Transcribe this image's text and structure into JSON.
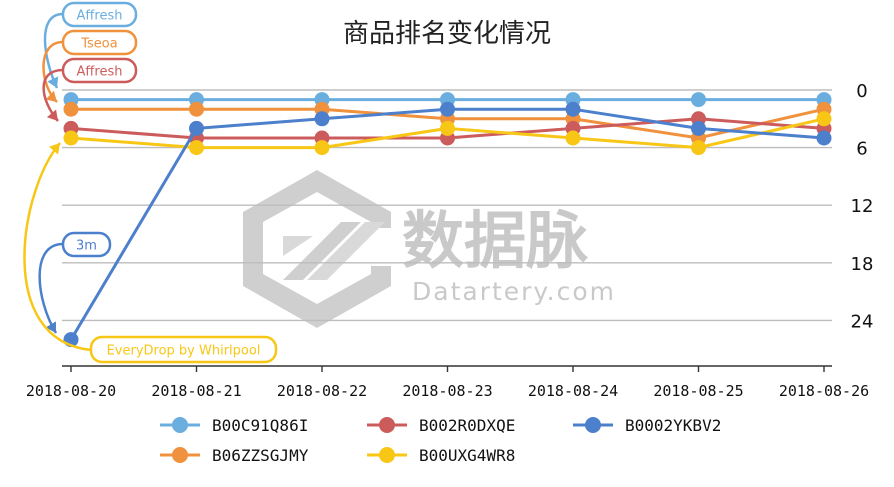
{
  "chart_data": {
    "type": "line",
    "title": "商品排名变化情况",
    "xlabel": "",
    "ylabel": "",
    "categories": [
      "2018-08-20",
      "2018-08-21",
      "2018-08-22",
      "2018-08-23",
      "2018-08-24",
      "2018-08-25",
      "2018-08-26"
    ],
    "y_ticks": [
      "0",
      "6",
      "12",
      "18",
      "24"
    ],
    "ylim": [
      0,
      28
    ],
    "y_inverted": true,
    "y_axis_side": "right",
    "grid": true,
    "legend_position": "bottom",
    "series": [
      {
        "name": "B00C91Q86I",
        "color": "#6aaee0",
        "values": [
          1,
          1,
          1,
          1,
          1,
          1,
          1
        ]
      },
      {
        "name": "B06ZZSGJMY",
        "color": "#f0913d",
        "values": [
          2,
          2,
          2,
          3,
          3,
          5,
          2
        ]
      },
      {
        "name": "B002R0DXQE",
        "color": "#cc5c5c",
        "values": [
          4,
          5,
          5,
          5,
          4,
          3,
          4
        ]
      },
      {
        "name": "B00UXG4WR8",
        "color": "#f8c716",
        "values": [
          5,
          6,
          6,
          4,
          5,
          6,
          3
        ]
      },
      {
        "name": "B0002YKBV2",
        "color": "#4c7fcc",
        "values": [
          26,
          4,
          3,
          2,
          2,
          4,
          5
        ]
      }
    ],
    "annotations": [
      {
        "text": "Affresh",
        "series": "B00C91Q86I",
        "point": 0
      },
      {
        "text": "Tseoa",
        "series": "B06ZZSGJMY",
        "point": 0
      },
      {
        "text": "Affresh",
        "series": "B002R0DXQE",
        "point": 0
      },
      {
        "text": "3m",
        "series": "B0002YKBV2",
        "point": 0
      },
      {
        "text": "EveryDrop by Whirlpool",
        "series": "B00UXG4WR8",
        "point": 0
      }
    ]
  },
  "watermark": {
    "cn": "数据脉",
    "en": "Datartery.com"
  }
}
